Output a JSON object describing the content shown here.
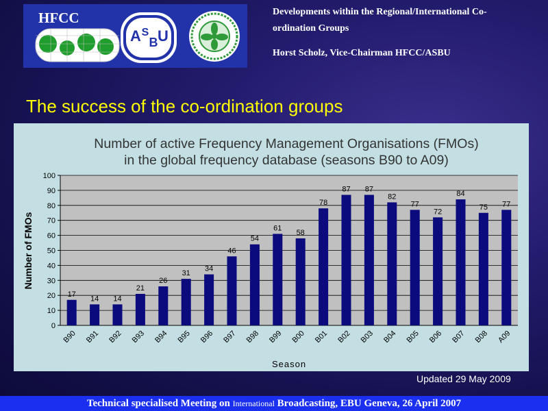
{
  "logos": {
    "hfcc_text": "HFCC",
    "asbu_letters": [
      "A",
      "S",
      "B",
      "U"
    ]
  },
  "header": {
    "subtitle": "Developments within the Regional/International Co-ordination Groups",
    "subtitle_line1": "Developments within the Regional/International Co-",
    "subtitle_line2": "ordination Groups",
    "author": "Horst Scholz, Vice-Chairman HFCC/ASBU"
  },
  "slide": {
    "title": "The success of the co-ordination groups",
    "updated": "Updated 29 May 2009"
  },
  "footer": {
    "part1": "Technical specialised Meeting on ",
    "part2": "International",
    "part3": " Broadcasting, EBU Geneva, 26 April 2007"
  },
  "colors": {
    "bar": "#0b0b7d",
    "plot_bg": "#c0c0c0",
    "panel_bg": "#c3dfe4",
    "title": "#ffff00"
  },
  "chart_data": {
    "type": "bar",
    "title_line1": "Number of active Frequency Management Organisations (FMOs)",
    "title_line2": "in the global frequency database (seasons B90 to A09)",
    "xlabel": "Season",
    "ylabel": "Number of FMOs",
    "categories": [
      "B90",
      "B91",
      "B92",
      "B93",
      "B94",
      "B95",
      "B96",
      "B97",
      "B98",
      "B99",
      "B00",
      "B01",
      "B02",
      "B03",
      "B04",
      "B05",
      "B06",
      "B07",
      "B08",
      "A09"
    ],
    "values": [
      17,
      14,
      14,
      21,
      26,
      31,
      34,
      46,
      54,
      61,
      58,
      78,
      87,
      87,
      82,
      77,
      72,
      84,
      75,
      77
    ],
    "ylim": [
      0,
      100
    ],
    "yticks": [
      0,
      10,
      20,
      30,
      40,
      50,
      60,
      70,
      80,
      90,
      100
    ],
    "grid": true,
    "legend": "none"
  }
}
